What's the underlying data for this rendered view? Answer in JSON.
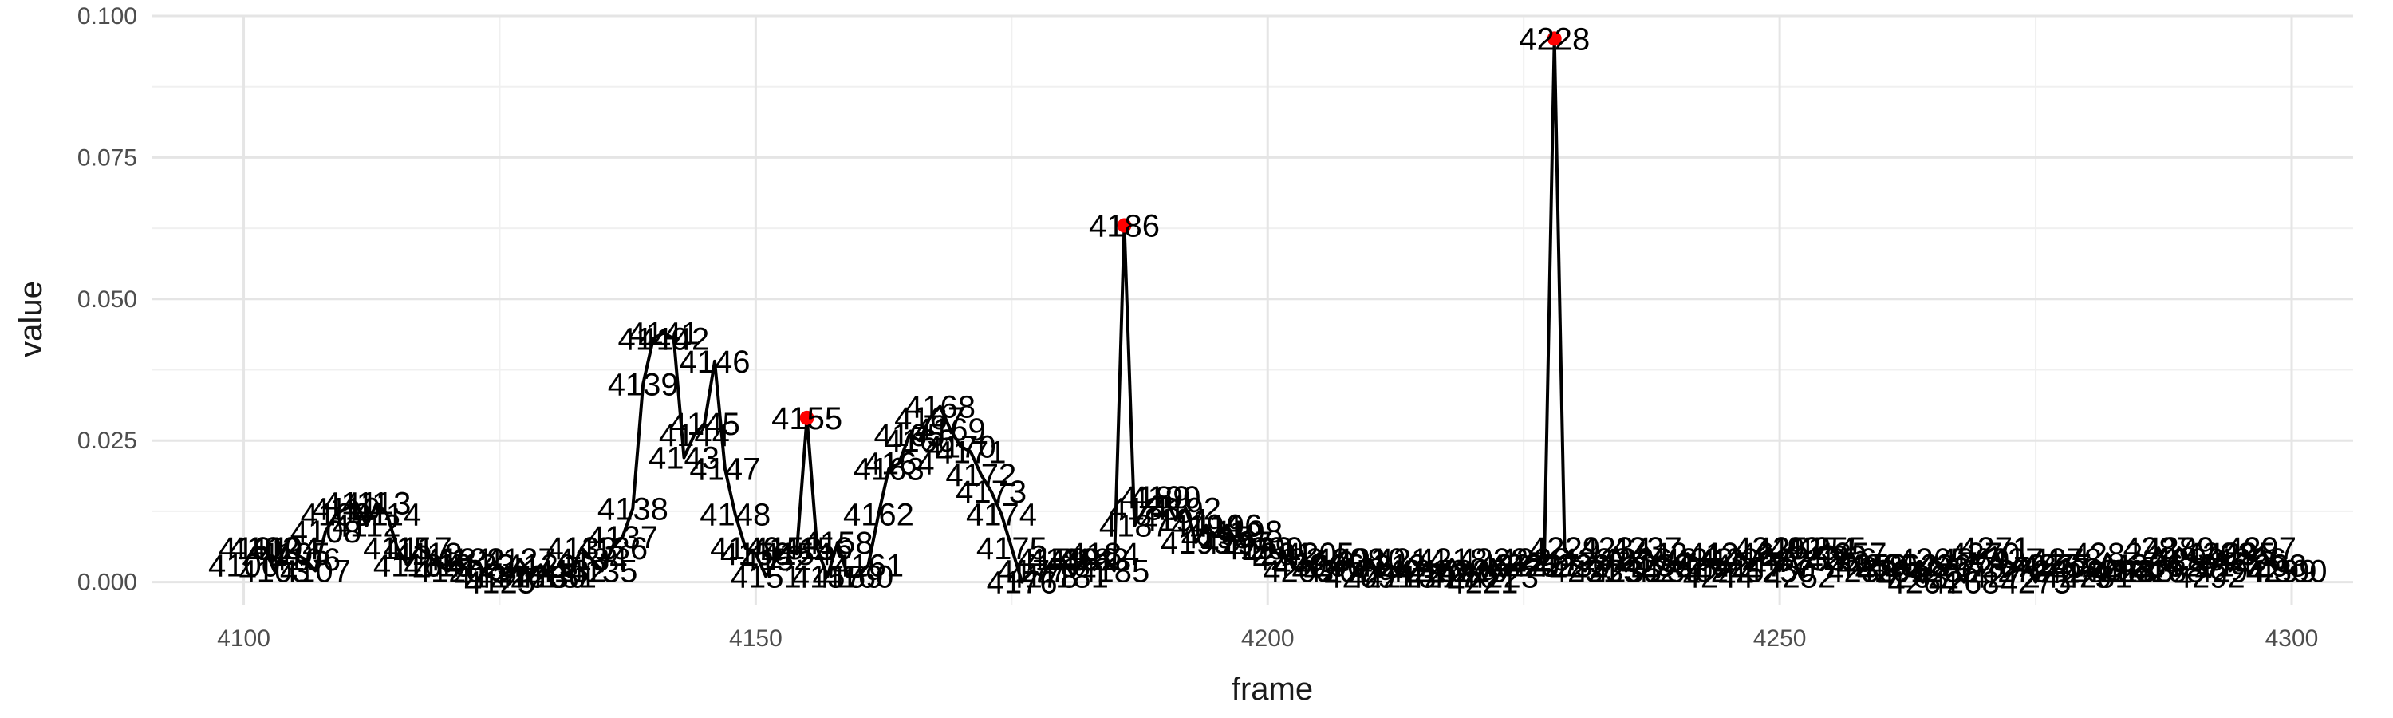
{
  "chart_data": {
    "type": "line",
    "title": "",
    "xlabel": "frame",
    "ylabel": "value",
    "xlim": [
      4091,
      4306
    ],
    "ylim": [
      -0.004,
      0.1
    ],
    "x_ticks": [
      4100,
      4150,
      4200,
      4250,
      4300
    ],
    "x_tick_labels": [
      "4100",
      "4150",
      "4200",
      "4250",
      "4300"
    ],
    "y_ticks": [
      0.0,
      0.025,
      0.05,
      0.075,
      0.1
    ],
    "y_tick_labels": [
      "0.000",
      "0.025",
      "0.050",
      "0.075",
      "0.100"
    ],
    "grid": true,
    "line_color": "#000000",
    "peak_color": "#ff0000",
    "series": [
      {
        "x": [
          4100,
          4101,
          4102,
          4103,
          4104,
          4105,
          4106,
          4107,
          4108,
          4109,
          4110,
          4111,
          4112,
          4113,
          4114,
          4115,
          4116,
          4117,
          4118,
          4119,
          4120,
          4121,
          4122,
          4123,
          4124,
          4125,
          4126,
          4127,
          4128,
          4129,
          4130,
          4131,
          4132,
          4133,
          4134,
          4135,
          4136,
          4137,
          4138,
          4139,
          4140,
          4141,
          4142,
          4143,
          4144,
          4145,
          4146,
          4147,
          4148,
          4149,
          4150,
          4151,
          4152,
          4153,
          4154,
          4155,
          4156,
          4157,
          4158,
          4159,
          4160,
          4161,
          4162,
          4163,
          4164,
          4165,
          4166,
          4167,
          4168,
          4169,
          4170,
          4171,
          4172,
          4173,
          4174,
          4175,
          4176,
          4177,
          4178,
          4179,
          4180,
          4181,
          4182,
          4183,
          4184,
          4185,
          4186,
          4187,
          4188,
          4189,
          4190,
          4191,
          4192,
          4193,
          4194,
          4195,
          4196,
          4197,
          4198,
          4199,
          4200,
          4201,
          4202,
          4203,
          4204,
          4205,
          4206,
          4207,
          4208,
          4209,
          4210,
          4211,
          4212,
          4213,
          4214,
          4215,
          4216,
          4217,
          4218,
          4219,
          4220,
          4221,
          4222,
          4223,
          4224,
          4225,
          4226,
          4227,
          4228,
          4229,
          4230,
          4231,
          4232,
          4233,
          4234,
          4235,
          4236,
          4237,
          4238,
          4239,
          4240,
          4241,
          4242,
          4243,
          4244,
          4245,
          4246,
          4247,
          4248,
          4249,
          4250,
          4251,
          4252,
          4253,
          4254,
          4255,
          4256,
          4257,
          4258,
          4259,
          4260,
          4261,
          4262,
          4263,
          4264,
          4265,
          4266,
          4267,
          4268,
          4269,
          4270,
          4271,
          4272,
          4273,
          4274,
          4275,
          4276,
          4277,
          4278,
          4279,
          4280,
          4281,
          4282,
          4283,
          4284,
          4285,
          4286,
          4287,
          4288,
          4289,
          4290,
          4291,
          4292,
          4293,
          4294,
          4295,
          4296,
          4297,
          4298,
          4299,
          4300
        ],
        "y": [
          0.003,
          0.006,
          0.006,
          0.002,
          0.006,
          0.005,
          0.004,
          0.002,
          0.009,
          0.012,
          0.013,
          0.014,
          0.01,
          0.014,
          0.012,
          0.006,
          0.003,
          0.006,
          0.005,
          0.003,
          0.002,
          0.004,
          0.004,
          0.003,
          0.001,
          0.0,
          0.001,
          0.004,
          0.001,
          0.003,
          0.001,
          0.001,
          0.002,
          0.006,
          0.004,
          0.002,
          0.006,
          0.008,
          0.013,
          0.035,
          0.043,
          0.044,
          0.043,
          0.022,
          0.026,
          0.028,
          0.039,
          0.02,
          0.012,
          0.006,
          0.005,
          0.001,
          0.004,
          0.006,
          0.005,
          0.029,
          0.006,
          0.001,
          0.007,
          0.001,
          0.001,
          0.003,
          0.012,
          0.02,
          0.021,
          0.026,
          0.025,
          0.029,
          0.031,
          0.027,
          0.024,
          0.023,
          0.019,
          0.016,
          0.012,
          0.006,
          0.0,
          0.002,
          0.001,
          0.004,
          0.004,
          0.001,
          0.004,
          0.004,
          0.005,
          0.002,
          0.063,
          0.01,
          0.013,
          0.015,
          0.015,
          0.011,
          0.013,
          0.007,
          0.01,
          0.008,
          0.01,
          0.007,
          0.009,
          0.006,
          0.006,
          0.005,
          0.004,
          0.002,
          0.003,
          0.005,
          0.003,
          0.002,
          0.004,
          0.001,
          0.004,
          0.001,
          0.003,
          0.001,
          0.004,
          0.002,
          0.002,
          0.001,
          0.004,
          0.001,
          0.002,
          0.0,
          0.004,
          0.001,
          0.003,
          0.003,
          0.004,
          0.003,
          0.096,
          0.006,
          0.003,
          0.002,
          0.004,
          0.002,
          0.006,
          0.002,
          0.004,
          0.006,
          0.003,
          0.002,
          0.002,
          0.005,
          0.004,
          0.004,
          0.001,
          0.002,
          0.005,
          0.003,
          0.004,
          0.006,
          0.002,
          0.006,
          0.001,
          0.004,
          0.006,
          0.006,
          0.004,
          0.005,
          0.002,
          0.003,
          0.003,
          0.002,
          0.003,
          0.001,
          0.0,
          0.004,
          0.002,
          0.003,
          0.0,
          0.004,
          0.005,
          0.006,
          0.001,
          0.002,
          0.004,
          0.0,
          0.003,
          0.003,
          0.004,
          0.001,
          0.002,
          0.001,
          0.005,
          0.002,
          0.002,
          0.002,
          0.003,
          0.006,
          0.002,
          0.006,
          0.004,
          0.003,
          0.001,
          0.005,
          0.002,
          0.005,
          0.004,
          0.006,
          0.003,
          0.002,
          0.002
        ],
        "peaks": [
          4155,
          4186,
          4228
        ]
      }
    ]
  }
}
